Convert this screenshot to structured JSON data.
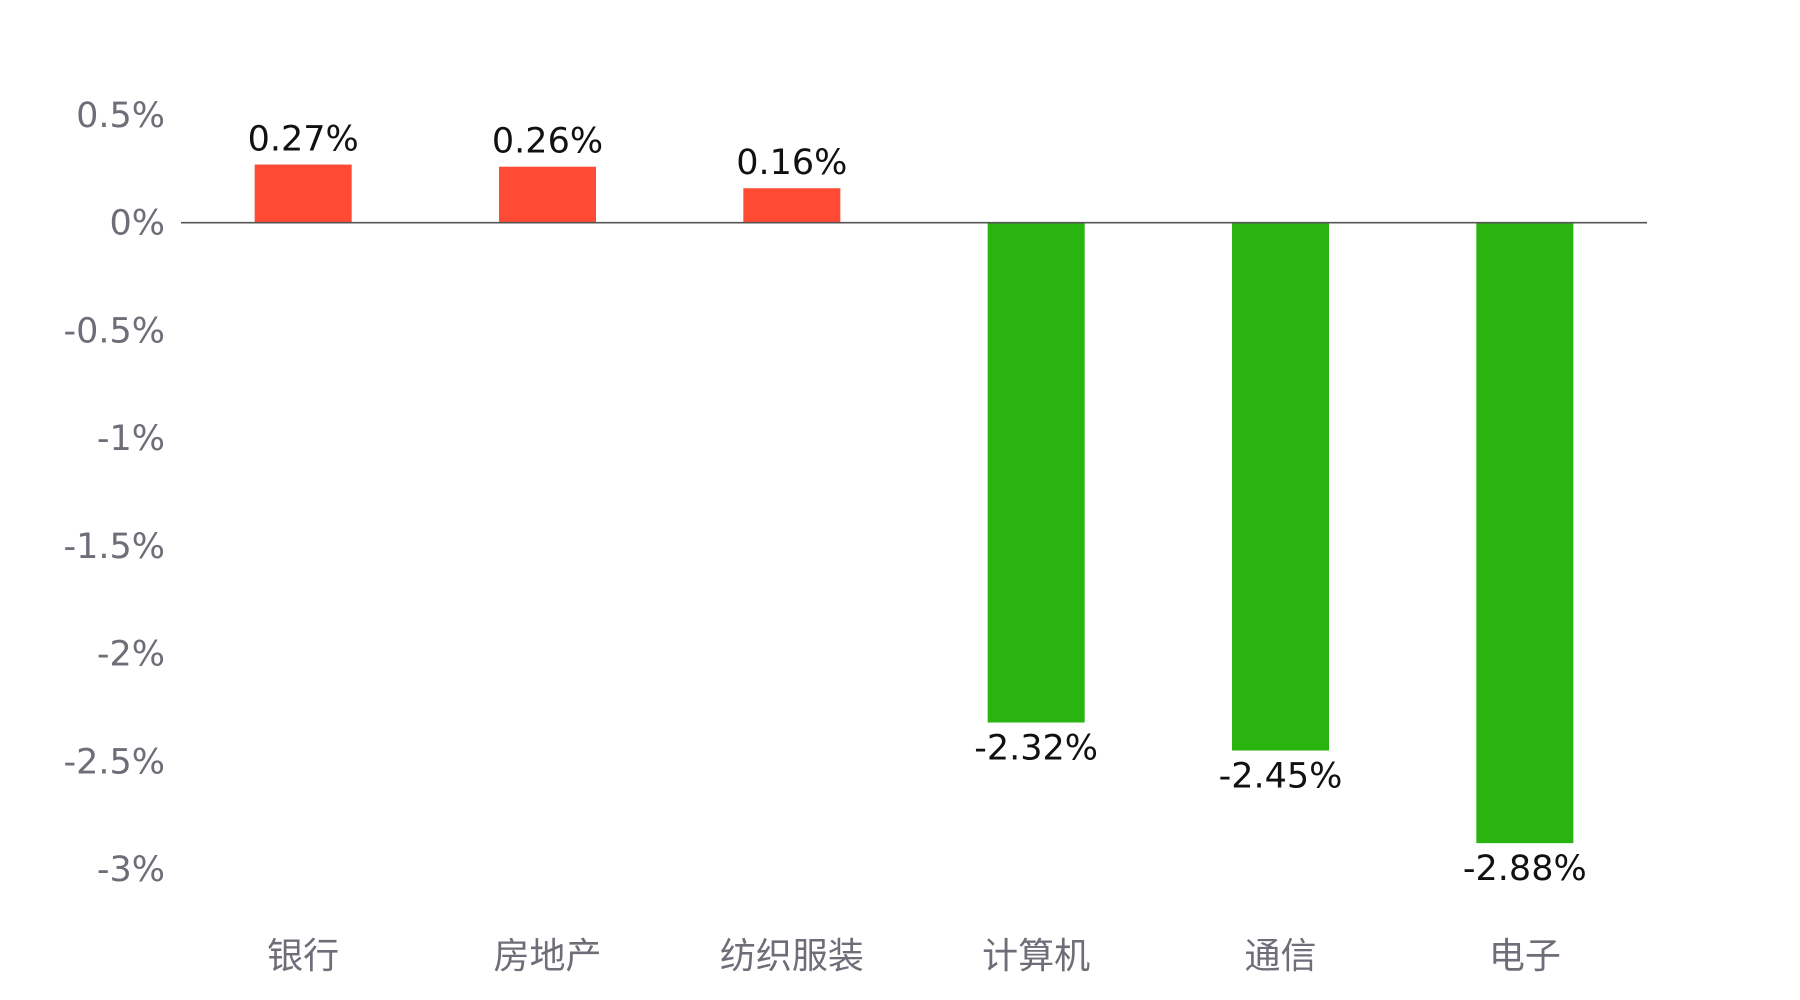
{
  "chart_data": {
    "type": "bar",
    "categories": [
      "银行",
      "房地产",
      "纺织服装",
      "计算机",
      "通信",
      "电子"
    ],
    "values": [
      0.27,
      0.26,
      0.16,
      -2.32,
      -2.45,
      -2.88
    ],
    "data_labels": [
      "0.27%",
      "0.26%",
      "0.16%",
      "-2.32%",
      "-2.45%",
      "-2.88%"
    ],
    "ylim": [
      -3,
      0.5
    ],
    "y_ticks": [
      {
        "value": 0.5,
        "label": "0.5%"
      },
      {
        "value": 0,
        "label": "0%"
      },
      {
        "value": -0.5,
        "label": "-0.5%"
      },
      {
        "value": -1,
        "label": "-1%"
      },
      {
        "value": -1.5,
        "label": "-1.5%"
      },
      {
        "value": -2,
        "label": "-2%"
      },
      {
        "value": -2.5,
        "label": "-2.5%"
      },
      {
        "value": -3,
        "label": "-3%"
      }
    ],
    "grid": false,
    "legend": "none",
    "colors": {
      "positive": "#ff4b33",
      "negative": "#2ab40f",
      "axis_line": "#555555",
      "tick_text": "#6e6e78",
      "label_text": "#111111"
    }
  }
}
